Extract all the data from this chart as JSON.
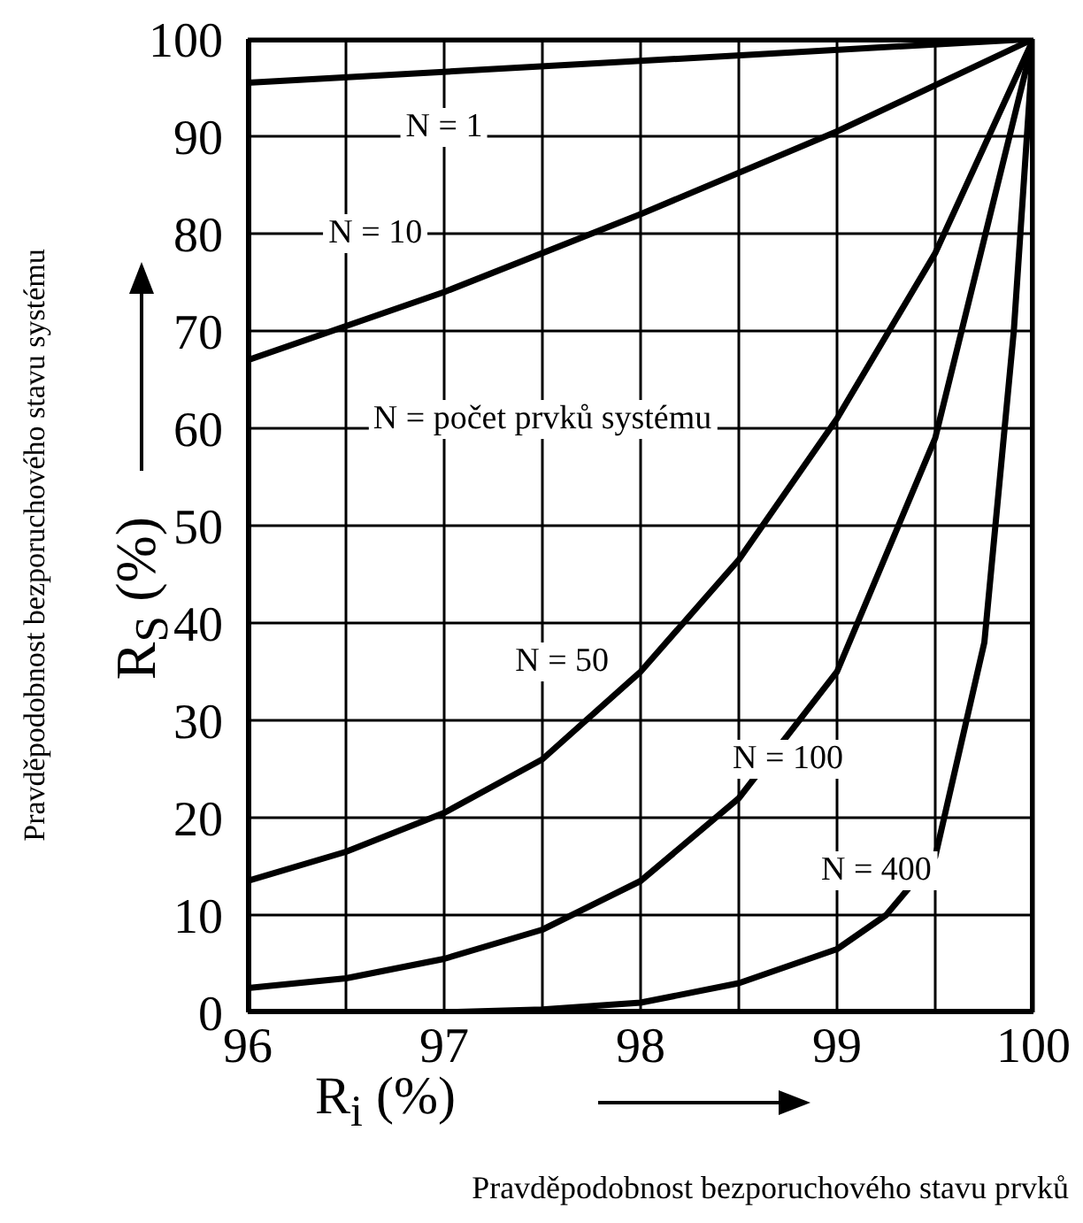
{
  "chart_data": {
    "type": "line",
    "xlabel": "R$_{i}$ (%)",
    "ylabel": "R$_{S}$ (%)",
    "annotations": [
      "N = počet prvků systému",
      "Pravděpodobnost bezporuchového stavu systému",
      "Pravděpodobnost bezporuchového stavu prvků"
    ],
    "series": [
      {
        "name": "N = 1",
        "color": "#000000",
        "x": [
          96,
          100
        ],
        "values": [
          95.5,
          100
        ]
      },
      {
        "name": "N = 10",
        "color": "#000000",
        "x": [
          96,
          97,
          98,
          99,
          100
        ],
        "values": [
          67,
          74,
          82,
          90.5,
          100
        ]
      },
      {
        "name": "N = 50",
        "color": "#000000",
        "x": [
          96,
          96.5,
          97,
          97.5,
          98,
          98.5,
          99,
          99.5,
          100
        ],
        "values": [
          13.5,
          16.5,
          20.5,
          26,
          35,
          46.5,
          61,
          78,
          100
        ]
      },
      {
        "name": "N = 100",
        "color": "#000000",
        "x": [
          96,
          96.5,
          97,
          97.5,
          98,
          98.5,
          99,
          99.5,
          100
        ],
        "values": [
          2.5,
          3.5,
          5.5,
          8.5,
          13.5,
          22,
          35,
          59,
          100
        ]
      },
      {
        "name": "N = 400",
        "color": "#000000",
        "x": [
          96,
          97,
          97.5,
          98,
          98.5,
          99,
          99.25,
          99.5,
          99.75,
          99.9,
          100
        ],
        "values": [
          0,
          0,
          0.3,
          1,
          3,
          6.5,
          10,
          16,
          38,
          70,
          100
        ]
      }
    ],
    "xlim": [
      96,
      100
    ],
    "xticks": [
      96,
      {
        "value": 96.5,
        "label": null
      },
      97,
      {
        "value": 97.5,
        "label": null
      },
      98,
      {
        "value": 98.5,
        "label": null
      },
      99,
      {
        "value": 99.5,
        "label": null
      },
      100
    ],
    "ylim": [
      0,
      100
    ],
    "yticks": [
      0,
      10,
      20,
      30,
      40,
      50,
      60,
      70,
      80,
      90,
      100
    ],
    "grid": true,
    "marker": "none",
    "line_style": "solid"
  }
}
